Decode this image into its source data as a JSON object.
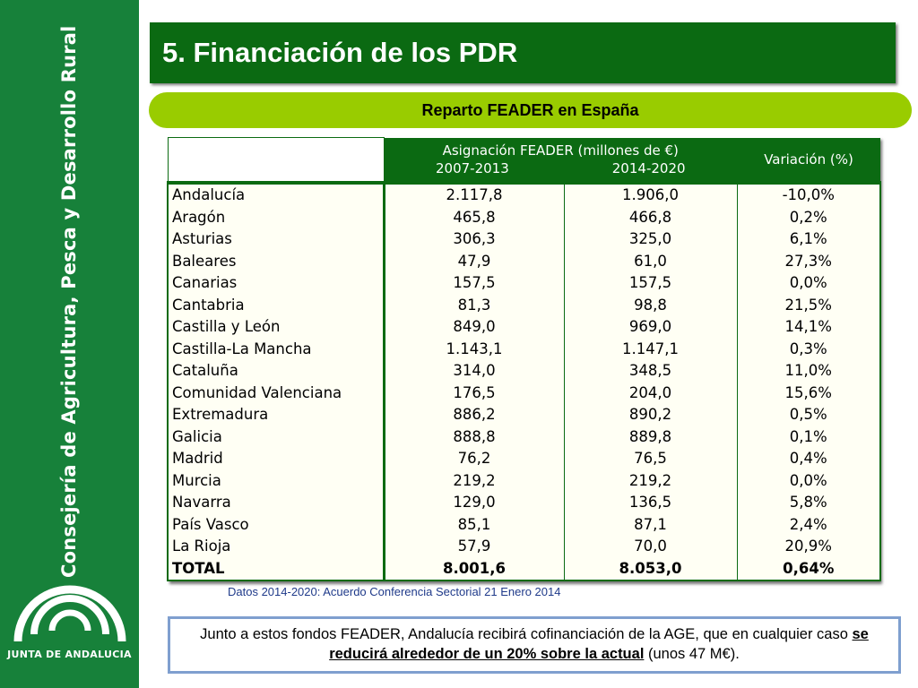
{
  "sidebar": {
    "vertical_text": "Consejería de Agricultura, Pesca y Desarrollo Rural",
    "logo_text": "JUNTA DE ANDALUCIA"
  },
  "header": {
    "title": "5. Financiación de los PDR",
    "subtitle": "Reparto FEADER en España"
  },
  "table": {
    "header_main": "Asignación FEADER (millones de €)",
    "header_year1": "2007-2013",
    "header_year2": "2014-2020",
    "header_variation": "Variación (%)",
    "rows": [
      {
        "region": "Andalucía",
        "v2007": "2.117,8",
        "v2014": "1.906,0",
        "var": "-10,0%"
      },
      {
        "region": "Aragón",
        "v2007": "465,8",
        "v2014": "466,8",
        "var": "0,2%"
      },
      {
        "region": "Asturias",
        "v2007": "306,3",
        "v2014": "325,0",
        "var": "6,1%"
      },
      {
        "region": "Baleares",
        "v2007": "47,9",
        "v2014": "61,0",
        "var": "27,3%"
      },
      {
        "region": "Canarias",
        "v2007": "157,5",
        "v2014": "157,5",
        "var": "0,0%"
      },
      {
        "region": "Cantabria",
        "v2007": "81,3",
        "v2014": "98,8",
        "var": "21,5%"
      },
      {
        "region": "Castilla y León",
        "v2007": "849,0",
        "v2014": "969,0",
        "var": "14,1%"
      },
      {
        "region": "Castilla-La Mancha",
        "v2007": "1.143,1",
        "v2014": "1.147,1",
        "var": "0,3%"
      },
      {
        "region": "Cataluña",
        "v2007": "314,0",
        "v2014": "348,5",
        "var": "11,0%"
      },
      {
        "region": "Comunidad Valenciana",
        "v2007": "176,5",
        "v2014": "204,0",
        "var": "15,6%"
      },
      {
        "region": "Extremadura",
        "v2007": "886,2",
        "v2014": "890,2",
        "var": "0,5%"
      },
      {
        "region": "Galicia",
        "v2007": "888,8",
        "v2014": "889,8",
        "var": "0,1%"
      },
      {
        "region": "Madrid",
        "v2007": "76,2",
        "v2014": "76,5",
        "var": "0,4%"
      },
      {
        "region": "Murcia",
        "v2007": "219,2",
        "v2014": "219,2",
        "var": "0,0%"
      },
      {
        "region": "Navarra",
        "v2007": "129,0",
        "v2014": "136,5",
        "var": "5,8%"
      },
      {
        "region": "País Vasco",
        "v2007": "85,1",
        "v2014": "87,1",
        "var": "2,4%"
      },
      {
        "region": "La Rioja",
        "v2007": "57,9",
        "v2014": "70,0",
        "var": "20,9%"
      }
    ],
    "total": {
      "region": "TOTAL",
      "v2007": "8.001,6",
      "v2014": "8.053,0",
      "var": "0,64%"
    }
  },
  "source": "Datos 2014-2020: Acuerdo Conferencia Sectorial 21 Enero 2014",
  "note": {
    "before": "Junto a estos fondos FEADER, Andalucía recibirá cofinanciación de la AGE, que en cualquier caso ",
    "emphasis": "se reducirá alrededor de un 20% sobre la actual",
    "after": " (unos 47 M€)."
  },
  "colors": {
    "sidebar": "#17813a",
    "title_bar": "#0b6a12",
    "subtitle_pill": "#99cc00",
    "note_border": "#7f9fcf",
    "source_text": "#1f3a8a"
  }
}
